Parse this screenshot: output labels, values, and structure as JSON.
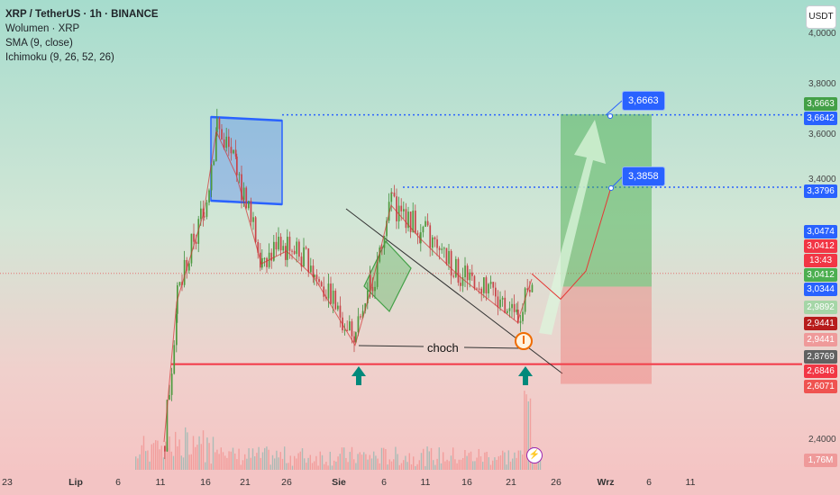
{
  "header": {
    "symbol": "XRP / TetherUS · 1h · BINANCE",
    "indicators": [
      "Wolumen · XRP",
      "SMA (9, close)",
      "Ichimoku (9, 26, 52, 26)"
    ]
  },
  "currency_button": "USDT",
  "price_axis_ticks": [
    "4,0000",
    "3,8000",
    "3,6000",
    "3,4000",
    "2,4000"
  ],
  "price_labels": [
    {
      "text": "3,6663",
      "price": 3.6663,
      "color": "#43a047"
    },
    {
      "text": "3,6642",
      "price": 3.6642,
      "color": "#2962ff"
    },
    {
      "text": "3,3796",
      "price": 3.3796,
      "color": "#2962ff"
    },
    {
      "text": "3,0474",
      "price": 3.0474,
      "color": "#2962ff"
    },
    {
      "text": "3,0412",
      "price": 3.0412,
      "color": "#f23645"
    },
    {
      "text": "13:43",
      "price": 3.0412,
      "color": "#f23645"
    },
    {
      "text": "3,0412",
      "price": 3.0412,
      "color": "#4caf50"
    },
    {
      "text": "3,0344",
      "price": 3.0344,
      "color": "#2962ff"
    },
    {
      "text": "2,9892",
      "price": 2.9892,
      "color": "#a5d6a7"
    },
    {
      "text": "2,9441",
      "price": 2.9441,
      "color": "#b71c1c"
    },
    {
      "text": "2,9441",
      "price": 2.9441,
      "color": "#ef9a9a"
    },
    {
      "text": "2,8769",
      "price": 2.8769,
      "color": "#616161"
    },
    {
      "text": "2,6846",
      "price": 2.6846,
      "color": "#f23645"
    },
    {
      "text": "2,6071",
      "price": 2.6071,
      "color": "#ef5350"
    },
    {
      "text": "1,76M",
      "price": 2.38,
      "color": "#ef9a9a"
    }
  ],
  "x_axis_labels": [
    "23",
    "Lip",
    "6",
    "11",
    "16",
    "21",
    "26",
    "Sie",
    "6",
    "11",
    "16",
    "21",
    "26",
    "Wrz",
    "6",
    "11"
  ],
  "annotations": {
    "target_callout_1": "3,6663",
    "target_callout_2": "3,3858",
    "choch_label": "choch",
    "lightning_icon": "lightning-icon",
    "arrow_icon": "up-arrow-icon"
  },
  "colors": {
    "bull": "#26a69a",
    "bear": "#ef5350",
    "line_blue": "#2962ff",
    "support_red": "#f23645",
    "tp_green": "#4caf50",
    "sl_red": "#ef5350"
  },
  "chart_data": {
    "type": "candlestick",
    "title": "XRP / TetherUS · 1h · BINANCE",
    "ylim": [
      2.3,
      4.05
    ],
    "x_labels": [
      "23",
      "Lip",
      "6",
      "11",
      "16",
      "21",
      "26",
      "Sie",
      "6",
      "11",
      "16",
      "21",
      "26",
      "Wrz",
      "6",
      "11"
    ],
    "key_levels": {
      "resistance_top": 3.6642,
      "resistance_mid": 3.3796,
      "support": 2.6846,
      "current": 3.0412,
      "take_profit": 3.6663,
      "entry": 2.9892,
      "stop_loss": 2.6071
    },
    "price_path": [
      {
        "x": "Lip 11",
        "price": 2.4
      },
      {
        "x": "Lip 14",
        "price": 2.95
      },
      {
        "x": "Lip 16",
        "price": 3.3
      },
      {
        "x": "Lip 18",
        "price": 3.62
      },
      {
        "x": "Lip 20",
        "price": 3.45
      },
      {
        "x": "Lip 23",
        "price": 3.1
      },
      {
        "x": "Lip 26",
        "price": 3.15
      },
      {
        "x": "Lip 30",
        "price": 3.05
      },
      {
        "x": "Sie 2",
        "price": 2.78
      },
      {
        "x": "Sie 6",
        "price": 2.98
      },
      {
        "x": "Sie 8",
        "price": 3.33
      },
      {
        "x": "Sie 14",
        "price": 3.2
      },
      {
        "x": "Sie 18",
        "price": 3.05
      },
      {
        "x": "Sie 22",
        "price": 2.87
      },
      {
        "x": "Sie 23",
        "price": 3.04
      }
    ],
    "projection": [
      {
        "x": "Sie 25",
        "price": 2.94
      },
      {
        "x": "Sie 28",
        "price": 3.05
      },
      {
        "x": "Sie 31",
        "price": 3.38
      }
    ]
  }
}
